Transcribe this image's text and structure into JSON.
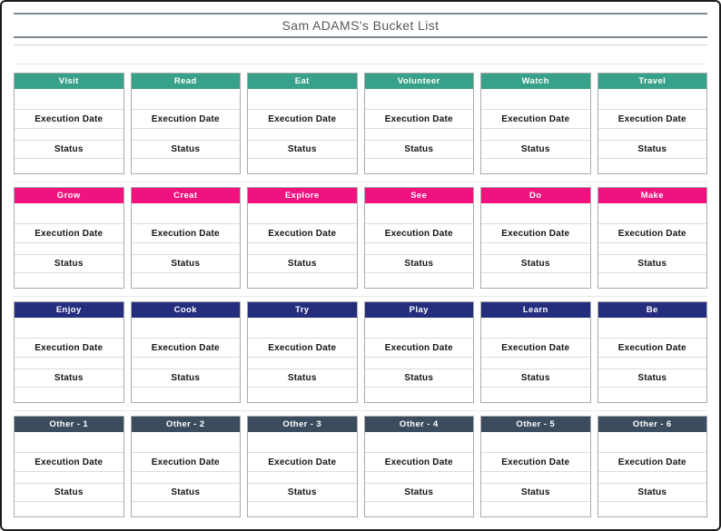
{
  "header": {
    "title": "Sam ADAMS's Bucket List"
  },
  "card": {
    "execution_date_label": "Execution Date",
    "status_label": "Status"
  },
  "colors": {
    "row1_teal": "#38A189",
    "row2_pink": "#F0127E",
    "row3_navy": "#242E7D",
    "row4_slate": "#3C4C5F",
    "title_rule_gray": "#7e8a94",
    "page_border_black": "#1c1c1c"
  },
  "rows": [
    {
      "accent": "#38A189",
      "cards": [
        "Visit",
        "Read",
        "Eat",
        "Volunteer",
        "Watch",
        "Travel"
      ]
    },
    {
      "accent": "#F0127E",
      "cards": [
        "Grow",
        "Creat",
        "Explore",
        "See",
        "Do",
        "Make"
      ]
    },
    {
      "accent": "#242E7D",
      "cards": [
        "Enjoy",
        "Cook",
        "Try",
        "Play",
        "Learn",
        "Be"
      ]
    },
    {
      "accent": "#3C4C5F",
      "cards": [
        "Other - 1",
        "Other - 2",
        "Other - 3",
        "Other - 4",
        "Other - 5",
        "Other - 6"
      ]
    }
  ]
}
